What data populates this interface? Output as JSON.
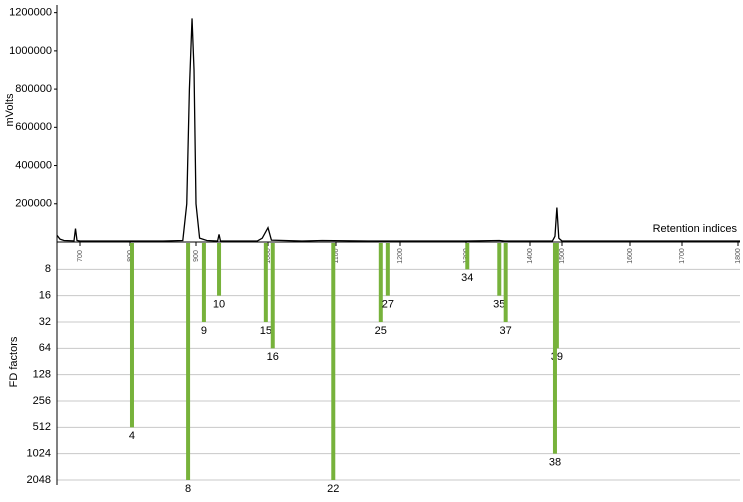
{
  "chart_data": [
    {
      "type": "line",
      "ylabel": "mVolts",
      "xlabel": "Retention indices",
      "x": [
        654,
        660,
        668,
        688,
        691,
        694,
        700,
        850,
        880,
        886,
        890,
        894,
        897,
        900,
        905,
        915,
        930,
        932,
        934,
        985,
        992,
        1000,
        1005,
        1050,
        1080,
        1150,
        1300,
        1352,
        1360,
        1470,
        1478,
        1484,
        1490,
        1500,
        1804
      ],
      "series": [
        {
          "color": "#000000",
          "values": [
            35000,
            15000,
            8000,
            6000,
            70000,
            8000,
            5000,
            5000,
            8000,
            200000,
            800000,
            1170000,
            900000,
            200000,
            20000,
            8000,
            5000,
            40000,
            5000,
            5000,
            20000,
            75000,
            10000,
            5000,
            8000,
            5000,
            5000,
            8000,
            5000,
            5000,
            30000,
            180000,
            20000,
            5000,
            5000
          ]
        }
      ],
      "xlim": [
        654,
        1804
      ],
      "xticks": [
        700,
        800,
        900,
        1000,
        1100,
        1200,
        1300,
        1400,
        1500,
        1600,
        1700,
        1800
      ],
      "ylim": [
        0,
        1240000
      ],
      "yticks": [
        200000,
        400000,
        600000,
        800000,
        1000000,
        1200000
      ],
      "grid": false
    },
    {
      "type": "bar",
      "ylabel": "FD factors",
      "color": "#77b23b",
      "log_scale": true,
      "inverted": true,
      "labels": [
        "4",
        "8",
        "9",
        "10",
        "15",
        "16",
        "22",
        "25",
        "27",
        "34",
        "35",
        "37",
        "39",
        "38"
      ],
      "x": [
        803,
        888,
        911,
        932,
        997,
        1007,
        1096,
        1170,
        1181,
        1302,
        1352,
        1362,
        1484,
        1478
      ],
      "values": [
        512,
        2048,
        32,
        16,
        32,
        64,
        2048,
        32,
        16,
        8,
        16,
        32,
        64,
        1024
      ],
      "ylim": [
        4,
        2048
      ],
      "yticks": [
        8,
        16,
        32,
        64,
        128,
        256,
        512,
        1024,
        2048
      ],
      "grid": true
    }
  ]
}
